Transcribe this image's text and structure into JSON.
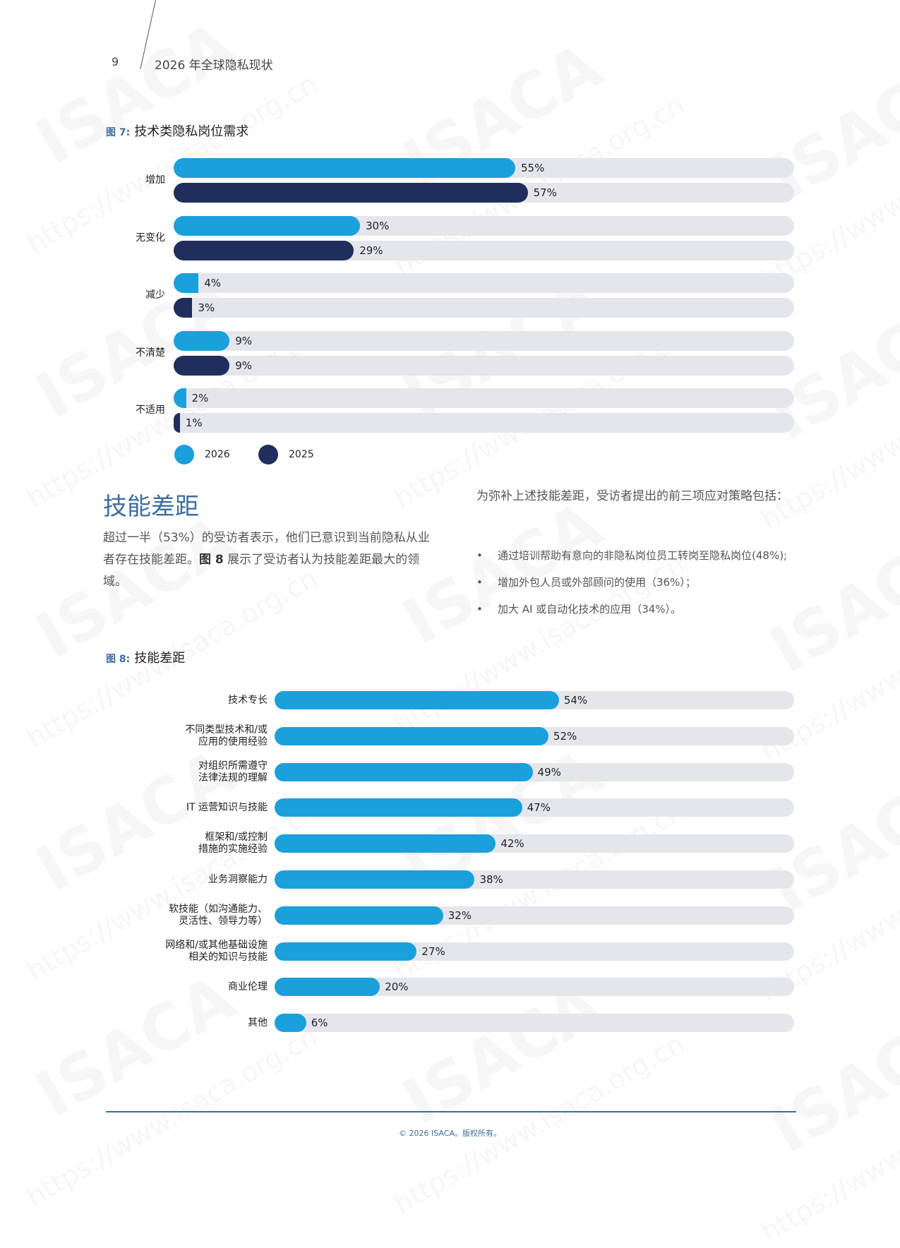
{
  "header": {
    "page_number": "9",
    "running_title": "2026 年全球隐私现状"
  },
  "figure7": {
    "label": "图 7:",
    "title": "技术类隐私岗位需求",
    "legend": [
      {
        "name": "2026",
        "color": "#1aa0db"
      },
      {
        "name": "2025",
        "color": "#1f2e5c"
      }
    ]
  },
  "section": {
    "heading": "技能差距",
    "para_part1": "超过一半（53%）的受访者表示，他们已意识到当前隐私从业者存在技能差距。",
    "para_bold": "图 8",
    "para_part2": " 展示了受访者认为技能差距最大的领域。",
    "right_intro": "为弥补上述技能差距，受访者提出的前三项应对策略包括：",
    "bullets": [
      "通过培训帮助有意向的非隐私岗位员工转岗至隐私岗位(48%);",
      "增加外包人员或外部顾问的使用（36%）；",
      "加大 AI 或自动化技术的应用（34%）。"
    ],
    "bullet_glyph": "•"
  },
  "figure8": {
    "label": "图 8:",
    "title": "技能差距"
  },
  "footer": {
    "copyright": "© 2026 ISACA。版权所有。"
  },
  "watermark": {
    "brand": "ISACA",
    "url": "https://www.isaca.org.cn"
  },
  "chart_data": [
    {
      "type": "bar",
      "orientation": "horizontal",
      "title": "技术类隐私岗位需求",
      "categories": [
        "增加",
        "无变化",
        "减少",
        "不清楚",
        "不适用"
      ],
      "series": [
        {
          "name": "2026",
          "color": "#1aa0db",
          "values": [
            55,
            30,
            4,
            9,
            2
          ],
          "labels": [
            "55%",
            "30%",
            "4%",
            "9%",
            "2%"
          ]
        },
        {
          "name": "2025",
          "color": "#1f2e5c",
          "values": [
            57,
            29,
            3,
            9,
            1
          ],
          "labels": [
            "57%",
            "29%",
            "3%",
            "9%",
            "1%"
          ]
        }
      ],
      "xlim": [
        0,
        100
      ],
      "legend_position": "bottom-left",
      "grid": false
    },
    {
      "type": "bar",
      "orientation": "horizontal",
      "title": "技能差距",
      "categories": [
        [
          "技术专长"
        ],
        [
          "不同类型技术和/或",
          "应用的使用经验"
        ],
        [
          "对组织所需遵守",
          "法律法规的理解"
        ],
        [
          "IT 运营知识与技能"
        ],
        [
          "框架和/或控制",
          "措施的实施经验"
        ],
        [
          "业务洞察能力"
        ],
        [
          "软技能（如沟通能力、",
          "灵活性、领导力等）"
        ],
        [
          "网络和/或其他基础设施",
          "相关的知识与技能"
        ],
        [
          "商业伦理"
        ],
        [
          "其他"
        ]
      ],
      "values": [
        54,
        52,
        49,
        47,
        42,
        38,
        32,
        27,
        20,
        6
      ],
      "labels": [
        "54%",
        "52%",
        "49%",
        "47%",
        "42%",
        "38%",
        "32%",
        "27%",
        "20%",
        "6%"
      ],
      "color": "#1aa0db",
      "xlim": [
        0,
        100
      ],
      "grid": false
    }
  ]
}
